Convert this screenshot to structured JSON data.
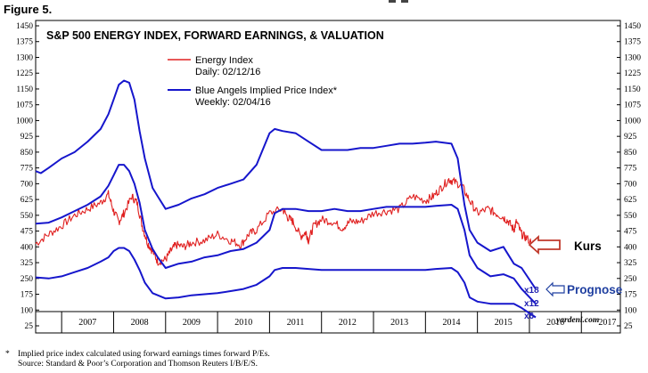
{
  "figure_label": "Figure 5.",
  "chart_data": {
    "type": "line",
    "title": "S&P 500 ENERGY INDEX, FORWARD EARNINGS, & VALUATION",
    "y_ticks": [
      1450,
      1375,
      1300,
      1225,
      1150,
      1075,
      1000,
      925,
      850,
      775,
      700,
      625,
      550,
      475,
      400,
      325,
      250,
      175,
      100,
      25
    ],
    "ylim": [
      25,
      1450
    ],
    "x_labels": [
      "2007",
      "2008",
      "2009",
      "2010",
      "2011",
      "2012",
      "2013",
      "2014",
      "2015",
      "2016",
      "2017"
    ],
    "xlim": [
      2006.5,
      2017.75
    ],
    "legend": [
      {
        "label": "Energy Index",
        "sublabel": "Daily: 02/12/16",
        "color": "#e02020"
      },
      {
        "label": "Blue Angels Implied Price Index*",
        "sublabel": "Weekly: 02/04/16",
        "color": "#1616cc"
      }
    ],
    "series": [
      {
        "name": "Energy Index",
        "color": "#e02020",
        "x": [
          2006.5,
          2006.75,
          2007.0,
          2007.25,
          2007.5,
          2007.75,
          2007.9,
          2008.0,
          2008.1,
          2008.2,
          2008.35,
          2008.45,
          2008.55,
          2008.65,
          2008.75,
          2008.85,
          2009.0,
          2009.1,
          2009.2,
          2009.35,
          2009.5,
          2009.75,
          2010.0,
          2010.25,
          2010.45,
          2010.6,
          2010.75,
          2011.0,
          2011.25,
          2011.35,
          2011.45,
          2011.6,
          2011.7,
          2011.75,
          2011.85,
          2012.0,
          2012.2,
          2012.4,
          2012.55,
          2012.75,
          2013.0,
          2013.25,
          2013.5,
          2013.75,
          2014.0,
          2014.15,
          2014.3,
          2014.45,
          2014.55,
          2014.7,
          2014.85,
          2015.0,
          2015.2,
          2015.35,
          2015.5,
          2015.6,
          2015.7,
          2015.75,
          2015.85,
          2015.95,
          2016.12
        ],
        "values": [
          415,
          460,
          500,
          550,
          580,
          610,
          650,
          570,
          520,
          560,
          640,
          610,
          500,
          420,
          380,
          330,
          340,
          380,
          410,
          400,
          420,
          430,
          460,
          430,
          410,
          460,
          480,
          560,
          580,
          540,
          520,
          450,
          470,
          430,
          500,
          530,
          520,
          490,
          520,
          520,
          560,
          570,
          580,
          640,
          620,
          640,
          680,
          720,
          710,
          690,
          620,
          560,
          580,
          560,
          540,
          520,
          480,
          520,
          460,
          440,
          405
        ]
      },
      {
        "name": "BA x18",
        "color": "#1616cc",
        "x": [
          2006.5,
          2006.6,
          2006.75,
          2007.0,
          2007.25,
          2007.5,
          2007.75,
          2007.9,
          2008.0,
          2008.1,
          2008.2,
          2008.3,
          2008.4,
          2008.5,
          2008.6,
          2008.75,
          2008.85,
          2009.0,
          2009.25,
          2009.5,
          2009.75,
          2010.0,
          2010.25,
          2010.5,
          2010.75,
          2011.0,
          2011.1,
          2011.25,
          2011.5,
          2011.75,
          2012.0,
          2012.25,
          2012.5,
          2012.75,
          2013.0,
          2013.25,
          2013.5,
          2013.75,
          2014.0,
          2014.2,
          2014.5,
          2014.62,
          2014.75,
          2014.85,
          2015.0,
          2015.25,
          2015.5,
          2015.7,
          2015.85,
          2016.12
        ],
        "values": [
          760,
          750,
          775,
          820,
          850,
          900,
          960,
          1030,
          1100,
          1170,
          1190,
          1180,
          1100,
          950,
          820,
          680,
          640,
          580,
          600,
          630,
          650,
          680,
          700,
          720,
          790,
          940,
          960,
          950,
          940,
          900,
          860,
          860,
          860,
          870,
          870,
          880,
          890,
          890,
          895,
          900,
          890,
          820,
          600,
          480,
          420,
          380,
          400,
          320,
          300,
          200
        ]
      },
      {
        "name": "BA x12",
        "color": "#1616cc",
        "x": [
          2006.5,
          2006.75,
          2007.0,
          2007.25,
          2007.5,
          2007.75,
          2007.9,
          2008.0,
          2008.1,
          2008.2,
          2008.3,
          2008.4,
          2008.5,
          2008.6,
          2008.75,
          2008.85,
          2009.0,
          2009.25,
          2009.5,
          2009.75,
          2010.0,
          2010.25,
          2010.5,
          2010.75,
          2011.0,
          2011.1,
          2011.25,
          2011.5,
          2011.75,
          2012.0,
          2012.25,
          2012.5,
          2012.75,
          2013.0,
          2013.25,
          2013.5,
          2013.75,
          2014.0,
          2014.2,
          2014.5,
          2014.62,
          2014.75,
          2014.85,
          2015.0,
          2015.25,
          2015.5,
          2015.7,
          2015.85,
          2016.12
        ],
        "values": [
          510,
          515,
          540,
          570,
          600,
          640,
          690,
          740,
          790,
          790,
          760,
          700,
          610,
          480,
          390,
          350,
          300,
          320,
          330,
          350,
          360,
          380,
          390,
          420,
          480,
          560,
          580,
          580,
          570,
          570,
          580,
          570,
          570,
          580,
          590,
          590,
          590,
          590,
          595,
          600,
          580,
          480,
          360,
          300,
          260,
          270,
          250,
          200,
          130
        ]
      },
      {
        "name": "BA x6",
        "color": "#1616cc",
        "x": [
          2006.5,
          2006.75,
          2007.0,
          2007.25,
          2007.5,
          2007.75,
          2007.9,
          2008.0,
          2008.1,
          2008.2,
          2008.3,
          2008.4,
          2008.5,
          2008.6,
          2008.75,
          2008.85,
          2009.0,
          2009.25,
          2009.5,
          2009.75,
          2010.0,
          2010.25,
          2010.5,
          2010.75,
          2011.0,
          2011.1,
          2011.25,
          2011.5,
          2011.75,
          2012.0,
          2012.25,
          2012.5,
          2012.75,
          2013.0,
          2013.25,
          2013.5,
          2013.75,
          2014.0,
          2014.2,
          2014.5,
          2014.62,
          2014.75,
          2014.85,
          2015.0,
          2015.25,
          2015.5,
          2015.7,
          2015.85,
          2016.12
        ],
        "values": [
          255,
          250,
          260,
          280,
          300,
          330,
          350,
          380,
          395,
          395,
          380,
          340,
          290,
          230,
          180,
          170,
          155,
          160,
          170,
          175,
          180,
          190,
          200,
          220,
          260,
          290,
          300,
          300,
          295,
          290,
          290,
          290,
          290,
          290,
          290,
          290,
          290,
          290,
          295,
          300,
          280,
          230,
          160,
          140,
          130,
          130,
          130,
          110,
          65
        ]
      }
    ],
    "multiplier_labels": [
      "x18",
      "x12",
      "x6"
    ],
    "source_mark": "yardeni.com"
  },
  "annotations": {
    "kurs": {
      "text": "Kurs",
      "color": "#000000",
      "arrow_color": "#c0392b"
    },
    "prognose": {
      "text": "Prognose",
      "color": "#1f3fa0",
      "arrow_color": "#1f3fa0"
    }
  },
  "footnote": {
    "marker": "*",
    "line1": "Implied price index calculated using forward earnings times forward P/Es.",
    "line2": "Source: Standard & Poor’s Corporation and Thomson Reuters I/B/E/S."
  }
}
